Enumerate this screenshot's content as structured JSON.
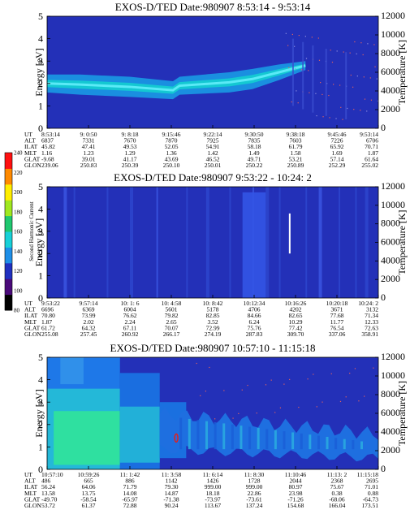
{
  "colors": {
    "background": "#2330b8",
    "band": "#14c8d2",
    "band_core": "#6cf2ff",
    "enhance": "#2fe0a0",
    "colorbar": [
      "#000000",
      "#4a0a7a",
      "#2030c0",
      "#1e8fe8",
      "#18d0d8",
      "#20c870",
      "#a0e820",
      "#ffee00",
      "#ff8a00",
      "#ff1010"
    ]
  },
  "colorbar": {
    "label": "Second Harmonic Current",
    "ticks": [
      "80",
      "100",
      "120",
      "140",
      "160",
      "180",
      "200",
      "220",
      "240"
    ]
  },
  "chart_data": [
    {
      "type": "heatmap",
      "title": "EXOS-D/TED   Date:980907  8:53:14 - 9:53:14",
      "ylabel": "Energy [eV]",
      "ylim": [
        0,
        5
      ],
      "yticks": [
        "0",
        "1",
        "2",
        "3",
        "4",
        "5"
      ],
      "y2label": "Temperature [K]",
      "y2lim": [
        0,
        12000
      ],
      "y2ticks": [
        "0",
        "2000",
        "4000",
        "6000",
        "8000",
        "10000",
        "12000"
      ],
      "band": [
        [
          0,
          2.0,
          0.8
        ],
        [
          0.1,
          1.95,
          0.9
        ],
        [
          0.25,
          1.85,
          0.9
        ],
        [
          0.38,
          1.7,
          0.8
        ],
        [
          0.4,
          1.9,
          0.8
        ],
        [
          0.55,
          2.05,
          0.9
        ],
        [
          0.62,
          2.2,
          0.9
        ],
        [
          0.7,
          2.5,
          0.7
        ],
        [
          0.78,
          2.8,
          0.4
        ]
      ],
      "ephemeris": {
        "rows": [
          "UT",
          "ALT",
          "ILAT",
          "MLT",
          "GLAT",
          "GLON"
        ],
        "columns": [
          [
            "8:53:14",
            "6837",
            "45.82",
            "1.16",
            "-9.68",
            "239.06"
          ],
          [
            "9: 0:50",
            "7331",
            "47.41",
            "1.23",
            "39.01",
            "250.83"
          ],
          [
            "9: 8:18",
            "7670",
            "49.53",
            "1.29",
            "41.17",
            "250.39"
          ],
          [
            "9:15:46",
            "7870",
            "52.05",
            "1.36",
            "43.69",
            "250.10"
          ],
          [
            "9:22:14",
            "7925",
            "54.91",
            "1.42",
            "46.52",
            "250.01"
          ],
          [
            "9:30:50",
            "7835",
            "58.18",
            "1.49",
            "49.71",
            "250.22"
          ],
          [
            "9:38:18",
            "7603",
            "61.79",
            "1.58",
            "53.21",
            "250.89"
          ],
          [
            "9:45:46",
            "7226",
            "65.92",
            "1.69",
            "57.14",
            "252.29"
          ],
          [
            "9:53:14",
            "6706",
            "70.71",
            "1.87",
            "61.64",
            "255.02"
          ]
        ]
      }
    },
    {
      "type": "heatmap",
      "title": "EXOS-D/TED   Date:980907  9:53:22 - 10:24: 2",
      "ylabel": "Energy [eV]",
      "ylim": [
        0,
        5
      ],
      "yticks": [
        "0",
        "1",
        "2",
        "3",
        "4",
        "5"
      ],
      "y2label": "Temperature [K]",
      "y2lim": [
        0,
        12000
      ],
      "y2ticks": [
        "0",
        "2000",
        "4000",
        "6000",
        "8000",
        "10000",
        "12000"
      ],
      "ephemeris": {
        "rows": [
          "UT",
          "ALT",
          "ILAT",
          "MLT",
          "GLAT",
          "GLON"
        ],
        "columns": [
          [
            "9:53:22",
            "6696",
            "70.80",
            "1.87",
            "61.72",
            "255.08"
          ],
          [
            "9:57:14",
            "6369",
            "73.99",
            "2.02",
            "64.32",
            "257.45"
          ],
          [
            "10: 1: 6",
            "6004",
            "76.62",
            "2.24",
            "67.11",
            "260.92"
          ],
          [
            "10: 4:58",
            "5601",
            "79.82",
            "2.65",
            "70.07",
            "266.17"
          ],
          [
            "10: 8:42",
            "5178",
            "82.85",
            "3.52",
            "72.99",
            "274.19"
          ],
          [
            "10:12:34",
            "4706",
            "84.66",
            "6.24",
            "75.76",
            "287.83"
          ],
          [
            "10:16:26",
            "4202",
            "82.65",
            "10.29",
            "77.42",
            "309.70"
          ],
          [
            "10:20:18",
            "3671",
            "77.68",
            "11.77",
            "76.54",
            "337.06"
          ],
          [
            "10:24: 2",
            "3132",
            "71.34",
            "12.33",
            "72.63",
            "358.91"
          ]
        ]
      }
    },
    {
      "type": "heatmap",
      "title": "EXOS-D/TED   Date:980907  10:57:10 - 11:15:18",
      "ylabel": "Energy [eV]",
      "ylim": [
        0,
        5
      ],
      "yticks": [
        "0",
        "1",
        "2",
        "3",
        "4",
        "5"
      ],
      "y2label": "Temperature [K]",
      "y2lim": [
        0,
        12000
      ],
      "y2ticks": [
        "0",
        "2000",
        "4000",
        "6000",
        "8000",
        "10000",
        "12000"
      ],
      "ephemeris": {
        "rows": [
          "UT",
          "ALT",
          "ILAT",
          "MLT",
          "GLAT",
          "GLON"
        ],
        "columns": [
          [
            "10:57:10",
            "486",
            "56.24",
            "13.58",
            "-49.70",
            "53.72"
          ],
          [
            "10:59:26",
            "665",
            "64.06",
            "13.75",
            "-58.54",
            "61.37"
          ],
          [
            "11: 1:42",
            "886",
            "71.79",
            "14.08",
            "-65.97",
            "72.88"
          ],
          [
            "11: 3:58",
            "1142",
            "79.30",
            "14.87",
            "-71.38",
            "90.24"
          ],
          [
            "11: 6:14",
            "1426",
            "999.00",
            "18.18",
            "-73.97",
            "113.67"
          ],
          [
            "11: 8:30",
            "1728",
            "999.00",
            "22.86",
            "-73.61",
            "137.24"
          ],
          [
            "11:10:46",
            "2044",
            "80.97",
            "23.98",
            "-71.26",
            "154.68"
          ],
          [
            "11:13: 2",
            "2368",
            "75.67",
            "0.38",
            "-68.06",
            "166.04"
          ],
          [
            "11:15:18",
            "2695",
            "71.01",
            "0.88",
            "-64.73",
            "173.51"
          ]
        ]
      }
    }
  ]
}
